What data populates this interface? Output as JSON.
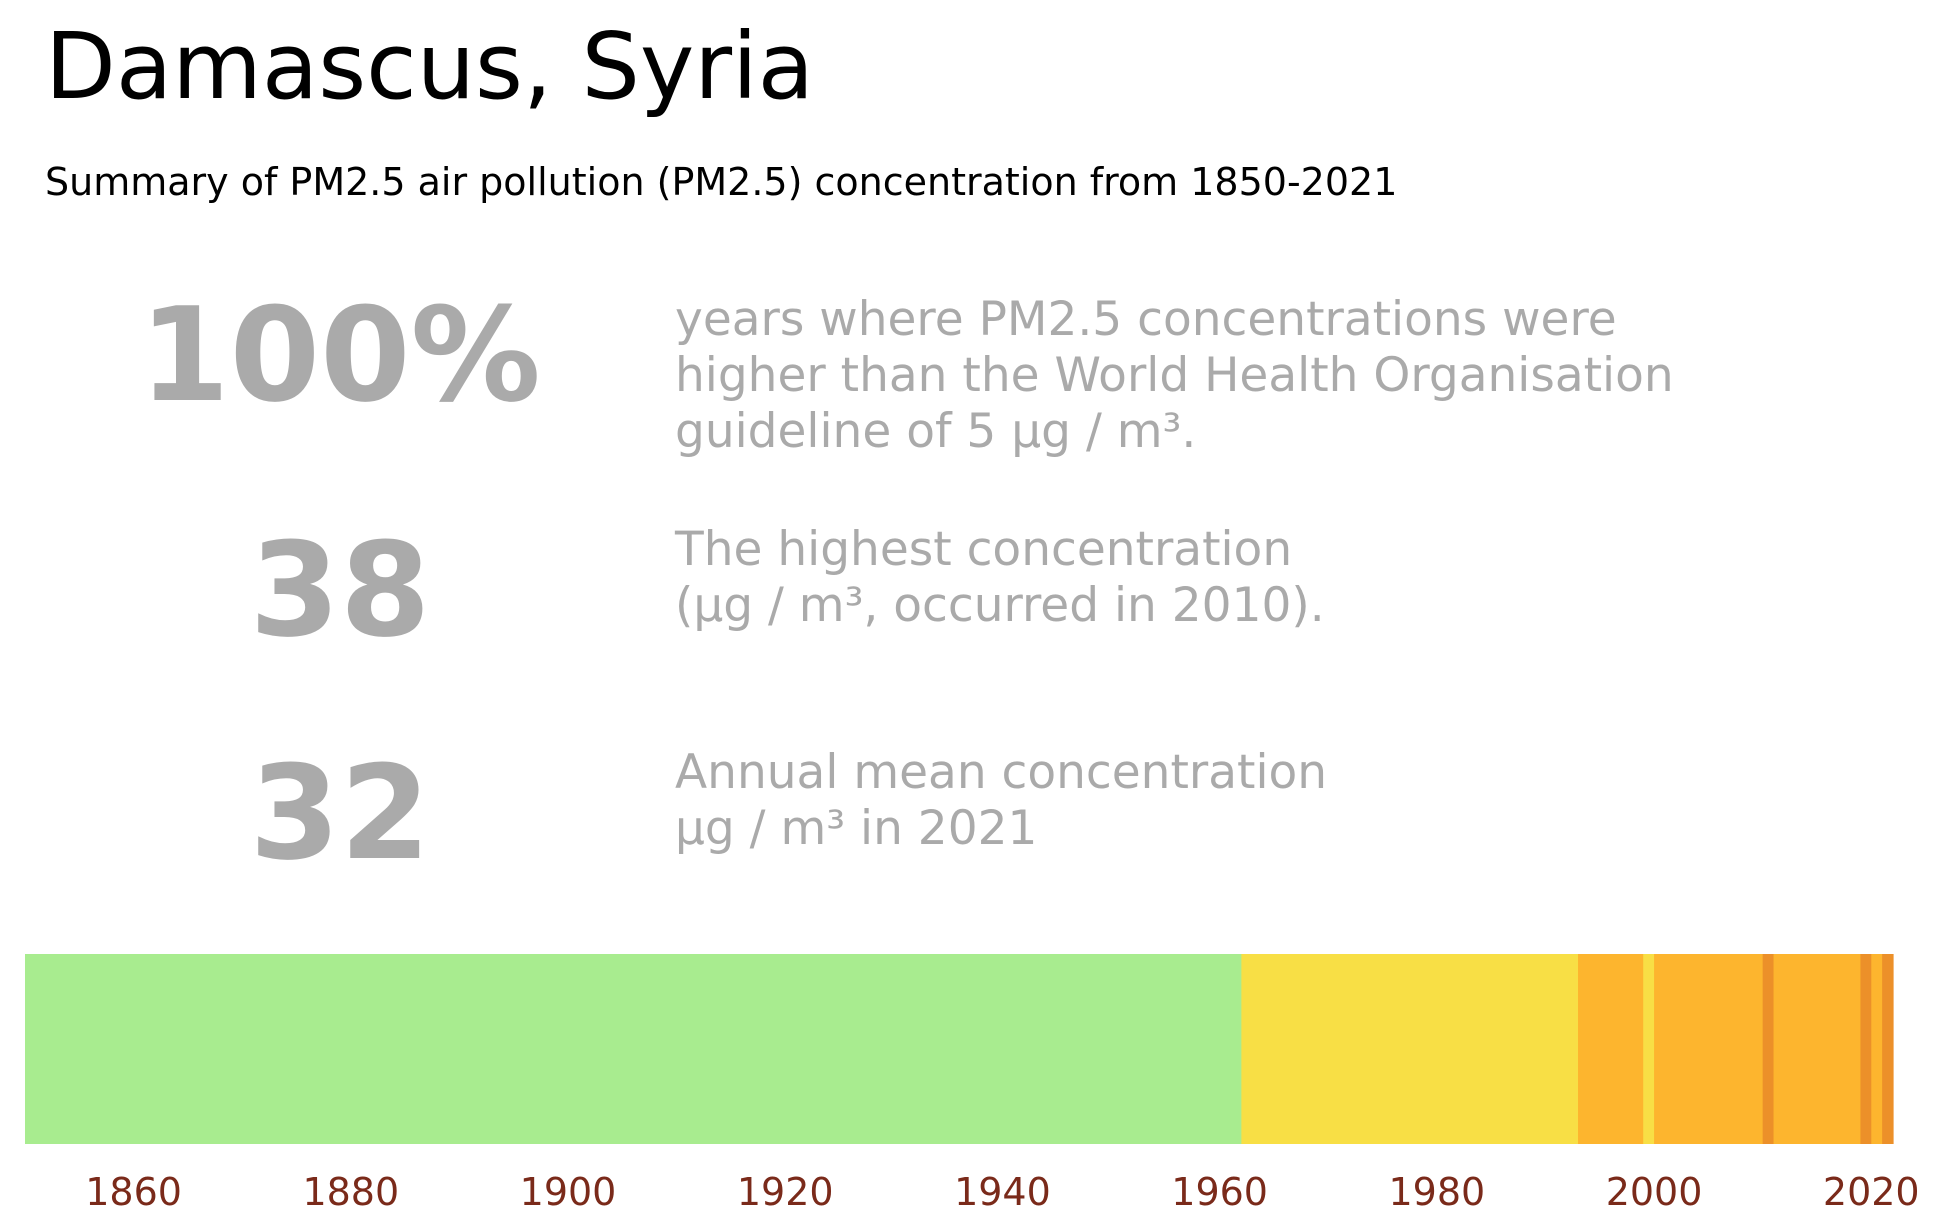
{
  "header": {
    "title": "Damascus, Syria",
    "subtitle": "Summary of PM2.5 air pollution (PM2.5) concentration from 1850-2021"
  },
  "stats": [
    {
      "value": "100%",
      "text": "years where PM2.5 concentrations were\nhigher than the World Health Organisation\nguideline of 5 µg / m³."
    },
    {
      "value": "38",
      "text": "The highest concentration\n(µg / m³, occurred in 2010)."
    },
    {
      "value": "32",
      "text": "Annual mean concentration\nµg / m³ in 2021"
    }
  ],
  "chart_data": {
    "type": "heatmap",
    "title": "",
    "xlabel": "",
    "ylabel": "",
    "xlim": [
      1850,
      2022
    ],
    "x_ticks": [
      1860,
      1880,
      1900,
      1920,
      1940,
      1960,
      1980,
      2000,
      2020
    ],
    "tick_color": "#7a2a1a",
    "grid": false,
    "segments": [
      {
        "start": 1850,
        "end": 1962,
        "category": "low",
        "color": "#a8ec8f"
      },
      {
        "start": 1962,
        "end": 1993,
        "category": "moderate",
        "color": "#f8df45"
      },
      {
        "start": 1993,
        "end": 1999,
        "category": "high",
        "color": "#fdb52e"
      },
      {
        "start": 1999,
        "end": 2000,
        "category": "moderate",
        "color": "#f8df45"
      },
      {
        "start": 2000,
        "end": 2010,
        "category": "high",
        "color": "#fdb52e"
      },
      {
        "start": 2010,
        "end": 2011,
        "category": "very-high",
        "color": "#ec9029"
      },
      {
        "start": 2011,
        "end": 2019,
        "category": "high",
        "color": "#fdb52e"
      },
      {
        "start": 2019,
        "end": 2020,
        "category": "very-high",
        "color": "#ec9029"
      },
      {
        "start": 2020,
        "end": 2021,
        "category": "high",
        "color": "#fdb52e"
      },
      {
        "start": 2021,
        "end": 2022,
        "category": "very-high",
        "color": "#ec9029"
      }
    ]
  }
}
